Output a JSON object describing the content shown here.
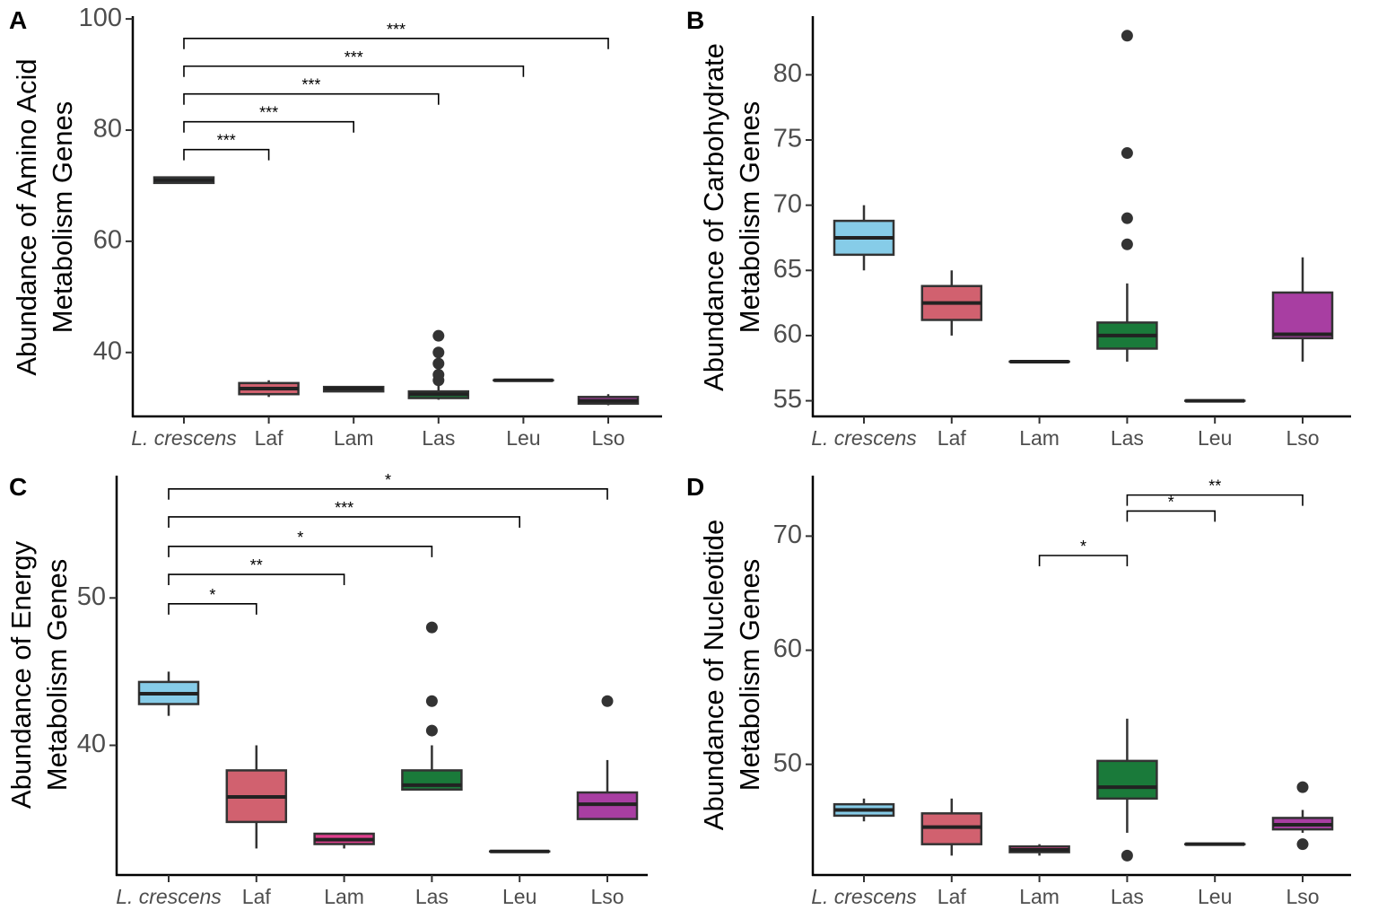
{
  "chart_data": [
    {
      "panel": "A",
      "type": "box",
      "ylabel_line1": "Abundance of Amino Acid",
      "ylabel_line2": "Metabolism Genes",
      "categories": [
        "L. crescens",
        "Laf",
        "Lam",
        "Las",
        "Leu",
        "Lso"
      ],
      "yticks": [
        40,
        60,
        80,
        100
      ],
      "ylim": [
        28.5,
        100.5
      ],
      "colors": [
        "#86cce8",
        "#d1616f",
        "#e03f8e",
        "#1a7a3a",
        "#e0f0c8",
        "#a83ea2"
      ],
      "boxes": [
        {
          "min": 70.5,
          "q1": 70.5,
          "median": 71,
          "q3": 71.5,
          "max": 71.5,
          "outliers": []
        },
        {
          "min": 32,
          "q1": 32.5,
          "median": 33.5,
          "q3": 34.5,
          "max": 35,
          "outliers": []
        },
        {
          "min": 33,
          "q1": 33,
          "median": 33.5,
          "q3": 33.8,
          "max": 33.8,
          "outliers": []
        },
        {
          "min": 31.5,
          "q1": 31.8,
          "median": 32.5,
          "q3": 33,
          "max": 34,
          "outliers": [
            35,
            36,
            38,
            40,
            43
          ]
        },
        {
          "min": 35,
          "q1": 35,
          "median": 35,
          "q3": 35,
          "max": 35,
          "outliers": []
        },
        {
          "min": 30.5,
          "q1": 30.8,
          "median": 31.3,
          "q3": 32,
          "max": 32.5,
          "outliers": []
        }
      ],
      "comparisons": [
        {
          "from": 0,
          "to": 1,
          "y": 76.5,
          "label": "***"
        },
        {
          "from": 0,
          "to": 2,
          "y": 81.5,
          "label": "***"
        },
        {
          "from": 0,
          "to": 3,
          "y": 86.5,
          "label": "***"
        },
        {
          "from": 0,
          "to": 4,
          "y": 91.5,
          "label": "***"
        },
        {
          "from": 0,
          "to": 5,
          "y": 96.5,
          "label": "***"
        }
      ]
    },
    {
      "panel": "B",
      "type": "box",
      "ylabel_line1": "Abundance of Carbohydrate",
      "ylabel_line2": "Metabolism Genes",
      "categories": [
        "L. crescens",
        "Laf",
        "Lam",
        "Las",
        "Leu",
        "Lso"
      ],
      "yticks": [
        55,
        60,
        65,
        70,
        75,
        80
      ],
      "ylim": [
        53.8,
        84.5
      ],
      "colors": [
        "#86cce8",
        "#d1616f",
        "#e03f8e",
        "#1a7a3a",
        "#e0f0c8",
        "#a83ea2"
      ],
      "boxes": [
        {
          "min": 65,
          "q1": 66.2,
          "median": 67.5,
          "q3": 68.8,
          "max": 70,
          "outliers": []
        },
        {
          "min": 60,
          "q1": 61.2,
          "median": 62.5,
          "q3": 63.8,
          "max": 65,
          "outliers": []
        },
        {
          "min": 58,
          "q1": 58,
          "median": 58,
          "q3": 58,
          "max": 58,
          "outliers": []
        },
        {
          "min": 58,
          "q1": 59,
          "median": 60,
          "q3": 61,
          "max": 64,
          "outliers": [
            67,
            69,
            74,
            83
          ]
        },
        {
          "min": 55,
          "q1": 55,
          "median": 55,
          "q3": 55,
          "max": 55,
          "outliers": []
        },
        {
          "min": 58,
          "q1": 59.8,
          "median": 60.1,
          "q3": 63.3,
          "max": 66,
          "outliers": []
        }
      ],
      "comparisons": []
    },
    {
      "panel": "C",
      "type": "box",
      "ylabel_line1": "Abundance of Energy",
      "ylabel_line2": "Metabolism Genes",
      "categories": [
        "L. crescens",
        "Laf",
        "Lam",
        "Las",
        "Leu",
        "Lso"
      ],
      "yticks": [
        40,
        50
      ],
      "ylim": [
        31.2,
        58.3
      ],
      "colors": [
        "#86cce8",
        "#d1616f",
        "#e03f8e",
        "#1a7a3a",
        "#e0f0c8",
        "#a83ea2"
      ],
      "boxes": [
        {
          "min": 42,
          "q1": 42.8,
          "median": 43.5,
          "q3": 44.3,
          "max": 45,
          "outliers": []
        },
        {
          "min": 33,
          "q1": 34.8,
          "median": 36.5,
          "q3": 38.3,
          "max": 40,
          "outliers": []
        },
        {
          "min": 33,
          "q1": 33.3,
          "median": 33.6,
          "q3": 34,
          "max": 34,
          "outliers": []
        },
        {
          "min": 37,
          "q1": 37,
          "median": 37.3,
          "q3": 38.3,
          "max": 40,
          "outliers": [
            41,
            43,
            48
          ]
        },
        {
          "min": 32.8,
          "q1": 32.8,
          "median": 32.8,
          "q3": 32.8,
          "max": 32.8,
          "outliers": []
        },
        {
          "min": 35,
          "q1": 35,
          "median": 36,
          "q3": 36.8,
          "max": 39,
          "outliers": [
            43
          ]
        }
      ],
      "comparisons": [
        {
          "from": 0,
          "to": 1,
          "y": 49.6,
          "label": "*"
        },
        {
          "from": 0,
          "to": 2,
          "y": 51.6,
          "label": "**"
        },
        {
          "from": 0,
          "to": 3,
          "y": 53.5,
          "label": "*"
        },
        {
          "from": 0,
          "to": 4,
          "y": 55.5,
          "label": "***"
        },
        {
          "from": 0,
          "to": 5,
          "y": 57.4,
          "label": "*"
        }
      ]
    },
    {
      "panel": "D",
      "type": "box",
      "ylabel_line1": "Abundance of Nucleotide",
      "ylabel_line2": "Metabolism Genes",
      "categories": [
        "L. crescens",
        "Laf",
        "Lam",
        "Las",
        "Leu",
        "Lso"
      ],
      "yticks": [
        50,
        60,
        70
      ],
      "ylim": [
        40.3,
        75.3
      ],
      "colors": [
        "#86cce8",
        "#d1616f",
        "#e03f8e",
        "#1a7a3a",
        "#e0f0c8",
        "#a83ea2"
      ],
      "boxes": [
        {
          "min": 45,
          "q1": 45.5,
          "median": 46,
          "q3": 46.5,
          "max": 47,
          "outliers": []
        },
        {
          "min": 42,
          "q1": 43,
          "median": 44.5,
          "q3": 45.7,
          "max": 47,
          "outliers": []
        },
        {
          "min": 42,
          "q1": 42.3,
          "median": 42.5,
          "q3": 42.8,
          "max": 43,
          "outliers": []
        },
        {
          "min": 44,
          "q1": 47,
          "median": 48,
          "q3": 50.3,
          "max": 54,
          "outliers": [
            42
          ]
        },
        {
          "min": 43,
          "q1": 43,
          "median": 43,
          "q3": 43,
          "max": 43,
          "outliers": []
        },
        {
          "min": 44,
          "q1": 44.3,
          "median": 44.7,
          "q3": 45.3,
          "max": 46,
          "outliers": [
            43,
            48
          ]
        }
      ],
      "comparisons": [
        {
          "from": 2,
          "to": 3,
          "y": 68.3,
          "label": "*"
        },
        {
          "from": 3,
          "to": 4,
          "y": 72.2,
          "label": "*"
        },
        {
          "from": 3,
          "to": 5,
          "y": 73.6,
          "label": "**"
        }
      ]
    }
  ]
}
